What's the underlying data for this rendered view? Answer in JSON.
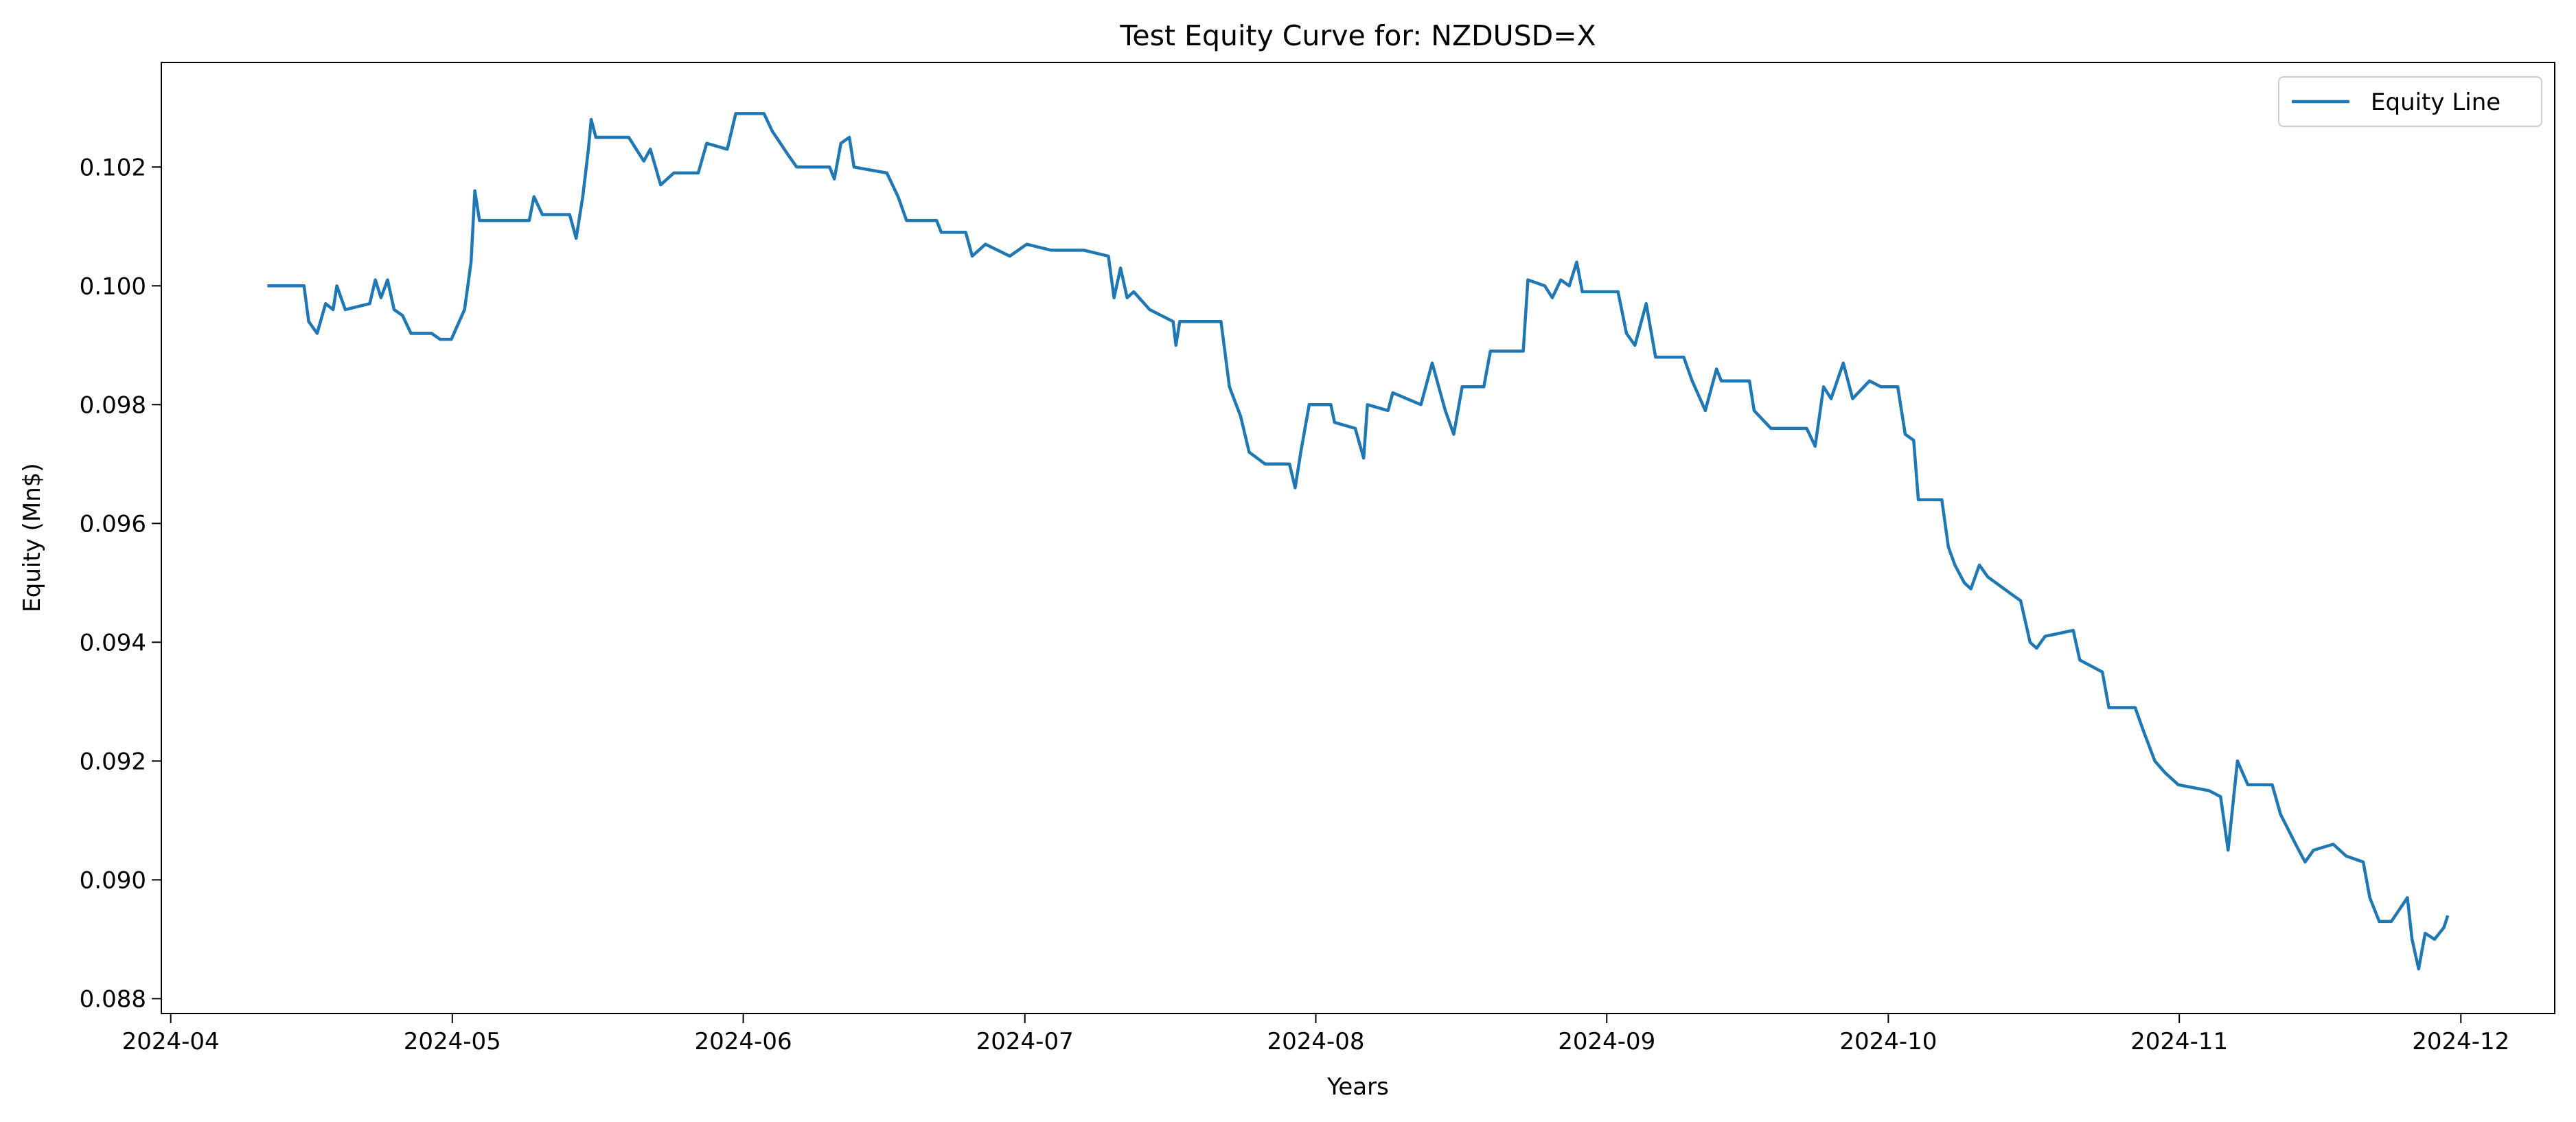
{
  "chart_data": {
    "type": "line",
    "title": "Test Equity Curve for: NZDUSD=X",
    "x_label": "Years",
    "y_label": "Equity (Mn$)",
    "legend": "upper right",
    "xlim": [
      19813,
      20068
    ],
    "xticks": [
      {
        "value": 19814,
        "label": "2024-04"
      },
      {
        "value": 19844,
        "label": "2024-05"
      },
      {
        "value": 19875,
        "label": "2024-06"
      },
      {
        "value": 19905,
        "label": "2024-07"
      },
      {
        "value": 19936,
        "label": "2024-08"
      },
      {
        "value": 19967,
        "label": "2024-09"
      },
      {
        "value": 19997,
        "label": "2024-10"
      },
      {
        "value": 20028,
        "label": "2024-11"
      },
      {
        "value": 20058,
        "label": "2024-12"
      }
    ],
    "ylim": [
      0.08775,
      0.10376
    ],
    "yticks": [
      {
        "value": 0.088,
        "label": "0.088"
      },
      {
        "value": 0.09,
        "label": "0.090"
      },
      {
        "value": 0.092,
        "label": "0.092"
      },
      {
        "value": 0.094,
        "label": "0.094"
      },
      {
        "value": 0.096,
        "label": "0.096"
      },
      {
        "value": 0.098,
        "label": "0.098"
      },
      {
        "value": 0.1,
        "label": "0.100"
      },
      {
        "value": 0.102,
        "label": "0.102"
      }
    ],
    "x": [
      19824.3,
      19828.2,
      19828.7,
      19829.6,
      19830.5,
      19831.3,
      19831.7,
      19832.6,
      19835.2,
      19835.8,
      19836.4,
      19837.1,
      19837.8,
      19838.7,
      19839.6,
      19841.8,
      19842.7,
      19843.9,
      19845.3,
      19846.0,
      19846.4,
      19846.9,
      19851.5,
      19852.2,
      19852.7,
      19853.6,
      19856.5,
      19857.2,
      19857.9,
      19858.5,
      19858.8,
      19859.3,
      19862.8,
      19864.4,
      19865.1,
      19866.2,
      19867.6,
      19870.2,
      19871.1,
      19873.3,
      19874.2,
      19877.2,
      19878.1,
      19879.8,
      19880.7,
      19884.2,
      19884.7,
      19885.4,
      19886.3,
      19886.8,
      19890.3,
      19891.5,
      19892.4,
      19895.6,
      19896.1,
      19898.7,
      19899.4,
      19900.8,
      19903.4,
      19905.2,
      19907.8,
      19911.3,
      19913.9,
      19914.5,
      19915.2,
      19915.9,
      19916.6,
      19918.3,
      19920.8,
      19921.1,
      19921.5,
      19925.9,
      19926.8,
      19928.0,
      19928.9,
      19930.6,
      19933.2,
      19933.8,
      19934.4,
      19935.3,
      19937.6,
      19938.0,
      19940.2,
      19941.1,
      19941.5,
      19943.7,
      19944.2,
      19947.2,
      19948.4,
      19949.8,
      19950.7,
      19951.6,
      19953.9,
      19954.6,
      19958.1,
      19958.6,
      19960.4,
      19961.2,
      19962.1,
      19963.0,
      19963.8,
      19964.4,
      19968.2,
      19969.1,
      19970.0,
      19971.2,
      19972.2,
      19975.2,
      19976.1,
      19977.5,
      19978.7,
      19979.2,
      19982.2,
      19982.7,
      19984.5,
      19988.3,
      19989.2,
      19990.1,
      19990.9,
      19992.2,
      19993.2,
      19995.0,
      19996.2,
      19998.0,
      19998.8,
      19999.7,
      20000.2,
      20002.7,
      20003.4,
      20004.1,
      20005.1,
      20005.8,
      20006.7,
      20007.6,
      20010.2,
      20011.1,
      20012.1,
      20012.8,
      20013.7,
      20016.7,
      20017.4,
      20019.8,
      20020.5,
      20023.3,
      20024.2,
      20025.4,
      20026.5,
      20027.9,
      20031.2,
      20032.4,
      20033.2,
      20034.2,
      20035.3,
      20037.9,
      20038.8,
      20040.4,
      20041.4,
      20042.3,
      20044.4,
      20045.8,
      20047.6,
      20048.3,
      20049.3,
      20050.6,
      20052.3,
      20052.8,
      20053.5,
      20054.2,
      20055.2,
      20056.2,
      20056.6
    ],
    "series": [
      {
        "name": "Equity Line",
        "color": "#1f77b4",
        "values": [
          0.1,
          0.1,
          0.0994,
          0.0992,
          0.0997,
          0.0996,
          0.1,
          0.0996,
          0.0997,
          0.1001,
          0.0998,
          0.1001,
          0.0996,
          0.0995,
          0.0992,
          0.0992,
          0.0991,
          0.0991,
          0.0996,
          0.1004,
          0.1016,
          0.1011,
          0.1011,
          0.1011,
          0.1015,
          0.1012,
          0.1012,
          0.1008,
          0.1015,
          0.1023,
          0.1028,
          0.1025,
          0.1025,
          0.1021,
          0.1023,
          0.1017,
          0.1019,
          0.1019,
          0.1024,
          0.1023,
          0.1029,
          0.1029,
          0.1026,
          0.1022,
          0.102,
          0.102,
          0.1018,
          0.1024,
          0.1025,
          0.102,
          0.1019,
          0.1015,
          0.1011,
          0.1011,
          0.1009,
          0.1009,
          0.1005,
          0.1007,
          0.1005,
          0.1007,
          0.1006,
          0.1006,
          0.1005,
          0.0998,
          0.1003,
          0.0998,
          0.0999,
          0.0996,
          0.0994,
          0.099,
          0.0994,
          0.0994,
          0.0983,
          0.0978,
          0.0972,
          0.097,
          0.097,
          0.0966,
          0.0972,
          0.098,
          0.098,
          0.0977,
          0.0976,
          0.0971,
          0.098,
          0.0979,
          0.0982,
          0.098,
          0.0987,
          0.0979,
          0.0975,
          0.0983,
          0.0983,
          0.0989,
          0.0989,
          0.1001,
          0.1,
          0.0998,
          0.1001,
          0.1,
          0.1004,
          0.0999,
          0.0999,
          0.0992,
          0.099,
          0.0997,
          0.0988,
          0.0988,
          0.0984,
          0.0979,
          0.0986,
          0.0984,
          0.0984,
          0.0979,
          0.0976,
          0.0976,
          0.0973,
          0.0983,
          0.0981,
          0.0987,
          0.0981,
          0.0984,
          0.0983,
          0.0983,
          0.0975,
          0.0974,
          0.0964,
          0.0964,
          0.0956,
          0.0953,
          0.095,
          0.0949,
          0.0953,
          0.0951,
          0.0948,
          0.0947,
          0.094,
          0.0939,
          0.0941,
          0.0942,
          0.0937,
          0.0935,
          0.0929,
          0.0929,
          0.0925,
          0.092,
          0.0918,
          0.0916,
          0.0915,
          0.0914,
          0.0905,
          0.092,
          0.0916,
          0.0916,
          0.0911,
          0.0906,
          0.0903,
          0.0905,
          0.0906,
          0.0904,
          0.0903,
          0.0897,
          0.0893,
          0.0893,
          0.0897,
          0.089,
          0.0885,
          0.0891,
          0.089,
          0.0892,
          0.0894
        ]
      }
    ]
  }
}
